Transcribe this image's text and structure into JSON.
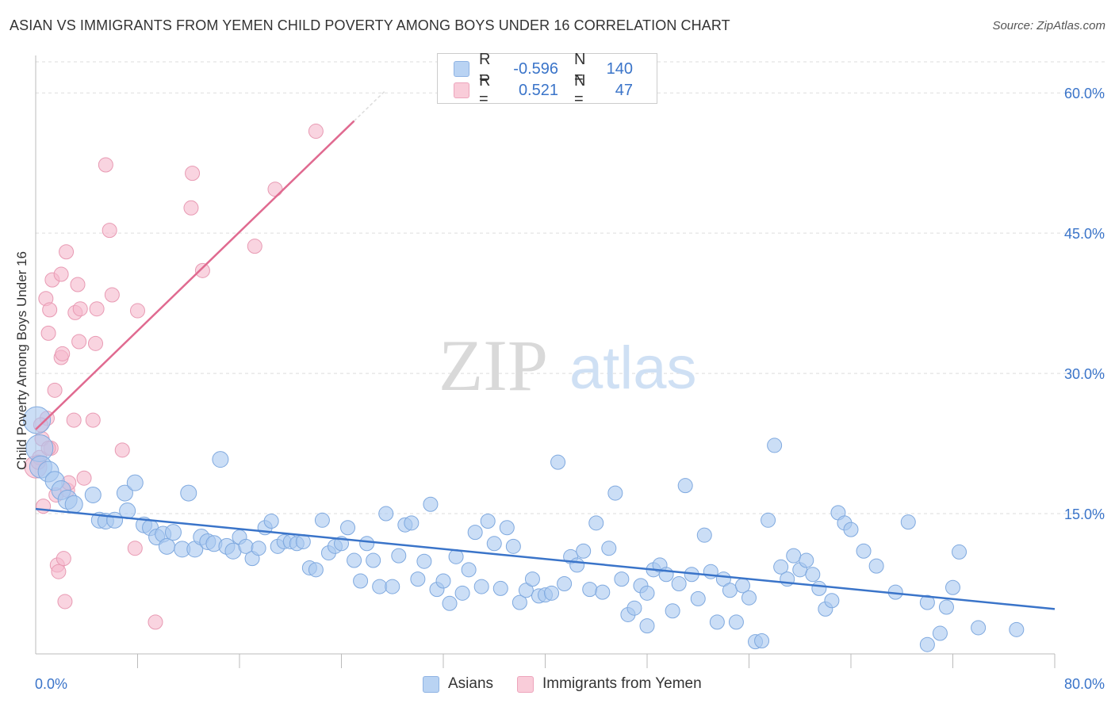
{
  "header": {
    "title": "ASIAN VS IMMIGRANTS FROM YEMEN CHILD POVERTY AMONG BOYS UNDER 16 CORRELATION CHART",
    "source": "Source: ZipAtlas.com"
  },
  "watermark": {
    "zip": "ZIP",
    "atlas": "atlas"
  },
  "legend": {
    "rows": [
      {
        "r_label": "R =",
        "r_value": "-0.596",
        "n_label": "N =",
        "n_value": "140",
        "color": "#a9c8f0"
      },
      {
        "r_label": "R =",
        "r_value": "0.521",
        "n_label": "N =",
        "n_value": "47",
        "color": "#f5b8cb"
      }
    ]
  },
  "bottom_legend": {
    "items": [
      "Asians",
      "Immigrants from Yemen"
    ]
  },
  "chart_data": {
    "type": "scatter",
    "title": "ASIAN VS IMMIGRANTS FROM YEMEN CHILD POVERTY AMONG BOYS UNDER 16 CORRELATION CHART",
    "ylabel": "Child Poverty Among Boys Under 16",
    "xlabel": "",
    "xlim": [
      0,
      80
    ],
    "ylim": [
      0,
      64
    ],
    "x_tick_labels": [
      "0.0%",
      "80.0%"
    ],
    "y_ticks": [
      15,
      30,
      45,
      60
    ],
    "y_tick_labels": [
      "15.0%",
      "30.0%",
      "45.0%",
      "60.0%"
    ],
    "grid": "horizontal dashed",
    "legend_position": "top-center",
    "colors": {
      "asians": "#3a74c9",
      "asians_fill": "#a9c8f0",
      "yemen": "#e06a90",
      "yemen_fill": "#f5b8cb",
      "tick_label": "#3a74c9"
    },
    "series": [
      {
        "name": "Asians",
        "r": -0.596,
        "n": 140,
        "trend": {
          "x": [
            0,
            80
          ],
          "y": [
            15.5,
            4.8
          ]
        },
        "points": [
          [
            0.1,
            25.0
          ],
          [
            0.3,
            22.0
          ],
          [
            0.4,
            20.0
          ],
          [
            1.0,
            19.5
          ],
          [
            1.5,
            18.5
          ],
          [
            2.0,
            17.5
          ],
          [
            2.5,
            16.5
          ],
          [
            3.0,
            16.0
          ],
          [
            4.5,
            17.0
          ],
          [
            5.0,
            14.3
          ],
          [
            5.5,
            14.2
          ],
          [
            6.2,
            14.3
          ],
          [
            7.0,
            17.2
          ],
          [
            7.2,
            15.3
          ],
          [
            7.8,
            18.3
          ],
          [
            8.5,
            13.8
          ],
          [
            9.0,
            13.5
          ],
          [
            9.5,
            12.5
          ],
          [
            10.0,
            12.8
          ],
          [
            10.3,
            11.5
          ],
          [
            10.8,
            13.0
          ],
          [
            11.5,
            11.2
          ],
          [
            12.0,
            17.2
          ],
          [
            12.5,
            11.2
          ],
          [
            13.0,
            12.5
          ],
          [
            13.5,
            12.0
          ],
          [
            14.0,
            11.8
          ],
          [
            14.5,
            20.8
          ],
          [
            15.0,
            11.5
          ],
          [
            15.5,
            11.0
          ],
          [
            16.0,
            12.5
          ],
          [
            16.5,
            11.5
          ],
          [
            17.0,
            10.2
          ],
          [
            17.5,
            11.3
          ],
          [
            18.0,
            13.5
          ],
          [
            18.5,
            14.2
          ],
          [
            19.0,
            11.5
          ],
          [
            19.5,
            12.0
          ],
          [
            20.0,
            12.0
          ],
          [
            20.5,
            11.8
          ],
          [
            21.0,
            12.0
          ],
          [
            21.5,
            9.2
          ],
          [
            22.0,
            9.0
          ],
          [
            22.5,
            14.3
          ],
          [
            23.0,
            10.8
          ],
          [
            23.5,
            11.5
          ],
          [
            24.0,
            11.8
          ],
          [
            24.5,
            13.5
          ],
          [
            25.0,
            10.0
          ],
          [
            25.5,
            7.8
          ],
          [
            26.0,
            11.8
          ],
          [
            26.5,
            10.0
          ],
          [
            27.0,
            7.2
          ],
          [
            27.5,
            15.0
          ],
          [
            28.0,
            7.2
          ],
          [
            28.5,
            10.5
          ],
          [
            29.0,
            13.8
          ],
          [
            29.5,
            14.0
          ],
          [
            30.0,
            8.0
          ],
          [
            30.5,
            9.9
          ],
          [
            31.0,
            16.0
          ],
          [
            31.5,
            6.9
          ],
          [
            32.0,
            7.8
          ],
          [
            32.5,
            5.4
          ],
          [
            33.0,
            10.4
          ],
          [
            33.5,
            6.5
          ],
          [
            34.0,
            9.0
          ],
          [
            34.5,
            13.0
          ],
          [
            35.0,
            7.2
          ],
          [
            35.5,
            14.2
          ],
          [
            36.0,
            11.8
          ],
          [
            36.5,
            7.0
          ],
          [
            37.0,
            13.5
          ],
          [
            37.5,
            11.5
          ],
          [
            38.0,
            5.5
          ],
          [
            38.5,
            6.8
          ],
          [
            39.0,
            8.0
          ],
          [
            39.5,
            6.2
          ],
          [
            40.0,
            6.3
          ],
          [
            40.5,
            6.5
          ],
          [
            41.0,
            20.5
          ],
          [
            41.5,
            7.5
          ],
          [
            42.0,
            10.4
          ],
          [
            42.5,
            9.5
          ],
          [
            43.0,
            11.0
          ],
          [
            43.5,
            6.9
          ],
          [
            44.0,
            14.0
          ],
          [
            44.5,
            6.6
          ],
          [
            45.0,
            11.3
          ],
          [
            45.5,
            17.2
          ],
          [
            46.0,
            8.0
          ],
          [
            46.5,
            4.2
          ],
          [
            47.0,
            4.9
          ],
          [
            47.5,
            7.3
          ],
          [
            48.0,
            6.5
          ],
          [
            48.5,
            9.0
          ],
          [
            49.0,
            9.5
          ],
          [
            49.5,
            8.5
          ],
          [
            50.0,
            4.6
          ],
          [
            50.5,
            7.5
          ],
          [
            51.0,
            18.0
          ],
          [
            51.5,
            8.5
          ],
          [
            52.0,
            5.9
          ],
          [
            52.5,
            12.7
          ],
          [
            53.0,
            8.8
          ],
          [
            53.5,
            3.4
          ],
          [
            54.0,
            8.0
          ],
          [
            54.5,
            6.8
          ],
          [
            55.0,
            3.4
          ],
          [
            55.5,
            7.3
          ],
          [
            56.0,
            6.0
          ],
          [
            56.5,
            1.3
          ],
          [
            57.0,
            1.4
          ],
          [
            57.5,
            14.3
          ],
          [
            58.0,
            22.3
          ],
          [
            58.5,
            9.3
          ],
          [
            59.0,
            8.0
          ],
          [
            59.5,
            10.5
          ],
          [
            60.0,
            9.0
          ],
          [
            60.5,
            10.0
          ],
          [
            61.0,
            8.5
          ],
          [
            61.5,
            7.0
          ],
          [
            62.0,
            4.8
          ],
          [
            62.5,
            5.7
          ],
          [
            63.0,
            15.1
          ],
          [
            63.5,
            14.0
          ],
          [
            64.0,
            13.3
          ],
          [
            65.0,
            11.0
          ],
          [
            66.0,
            9.4
          ],
          [
            67.5,
            6.6
          ],
          [
            68.5,
            14.1
          ],
          [
            70.0,
            5.5
          ],
          [
            71.0,
            2.2
          ],
          [
            71.5,
            5.0
          ],
          [
            72.0,
            7.1
          ],
          [
            72.5,
            10.9
          ],
          [
            74.0,
            2.8
          ],
          [
            77.0,
            2.6
          ],
          [
            70.0,
            1.0
          ],
          [
            48.0,
            3.0
          ]
        ]
      },
      {
        "name": "Immigrants from Yemen",
        "r": 0.521,
        "n": 47,
        "trend": {
          "x": [
            0,
            25
          ],
          "y": [
            24.0,
            57.0
          ]
        },
        "points": [
          [
            0.0,
            20.0
          ],
          [
            0.3,
            21.0
          ],
          [
            0.5,
            23.0
          ],
          [
            0.6,
            15.8
          ],
          [
            0.8,
            38.0
          ],
          [
            0.9,
            25.2
          ],
          [
            1.0,
            34.3
          ],
          [
            1.1,
            36.8
          ],
          [
            1.2,
            22.0
          ],
          [
            1.3,
            40.0
          ],
          [
            1.5,
            28.2
          ],
          [
            1.6,
            17.0
          ],
          [
            1.7,
            9.5
          ],
          [
            1.8,
            8.8
          ],
          [
            2.0,
            40.6
          ],
          [
            2.0,
            31.7
          ],
          [
            2.1,
            32.1
          ],
          [
            2.2,
            10.2
          ],
          [
            2.3,
            5.6
          ],
          [
            2.4,
            43.0
          ],
          [
            2.5,
            17.5
          ],
          [
            2.6,
            18.3
          ],
          [
            3.0,
            25.0
          ],
          [
            3.1,
            36.5
          ],
          [
            3.3,
            39.5
          ],
          [
            3.4,
            33.4
          ],
          [
            3.5,
            36.9
          ],
          [
            3.8,
            18.8
          ],
          [
            4.5,
            25.0
          ],
          [
            4.7,
            33.2
          ],
          [
            4.8,
            36.9
          ],
          [
            5.5,
            52.3
          ],
          [
            5.8,
            45.3
          ],
          [
            6.0,
            38.4
          ],
          [
            6.8,
            21.8
          ],
          [
            7.8,
            11.3
          ],
          [
            8.0,
            36.7
          ],
          [
            9.4,
            3.4
          ],
          [
            12.2,
            47.7
          ],
          [
            12.3,
            51.4
          ],
          [
            13.1,
            41.0
          ],
          [
            17.2,
            43.6
          ],
          [
            18.8,
            49.7
          ],
          [
            22.0,
            55.9
          ],
          [
            1.0,
            22.0
          ],
          [
            0.4,
            24.5
          ],
          [
            0.2,
            20.5
          ]
        ]
      }
    ]
  }
}
